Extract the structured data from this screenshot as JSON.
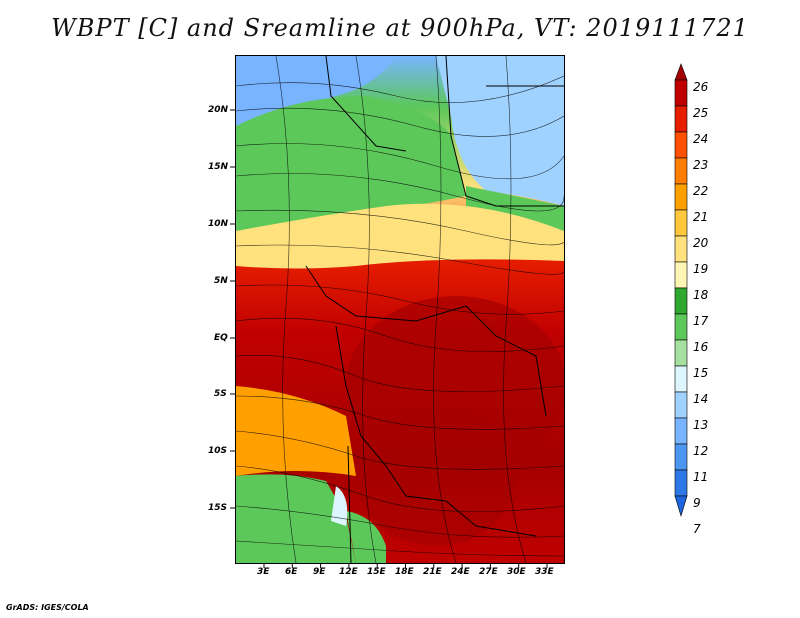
{
  "title": "WBPT [C] and Sreamline at 900hPa, VT: 2019111721",
  "lat_labels": [
    "20N",
    "15N",
    "10N",
    "5N",
    "EQ",
    "5S",
    "10S",
    "15S"
  ],
  "lon_labels": [
    "3E",
    "6E",
    "9E",
    "12E",
    "15E",
    "18E",
    "21E",
    "24E",
    "27E",
    "30E",
    "33E"
  ],
  "colorbar": {
    "labels": [
      "26",
      "25",
      "24",
      "23",
      "22",
      "21",
      "20",
      "19",
      "18",
      "17",
      "16",
      "15",
      "14",
      "13",
      "12",
      "11",
      "9",
      "7"
    ],
    "colors": [
      "#a50000",
      "#c00000",
      "#e61e00",
      "#ff5000",
      "#ff7d00",
      "#ffa000",
      "#ffc83c",
      "#ffe17d",
      "#fff5b4",
      "#2ea82e",
      "#5cc85a",
      "#a6e0a0",
      "#dcf5ff",
      "#a0d2ff",
      "#78b4ff",
      "#4a96f0",
      "#2d78e6",
      "#1e64dc"
    ]
  },
  "footer": "GrADS: IGES/COLA"
}
